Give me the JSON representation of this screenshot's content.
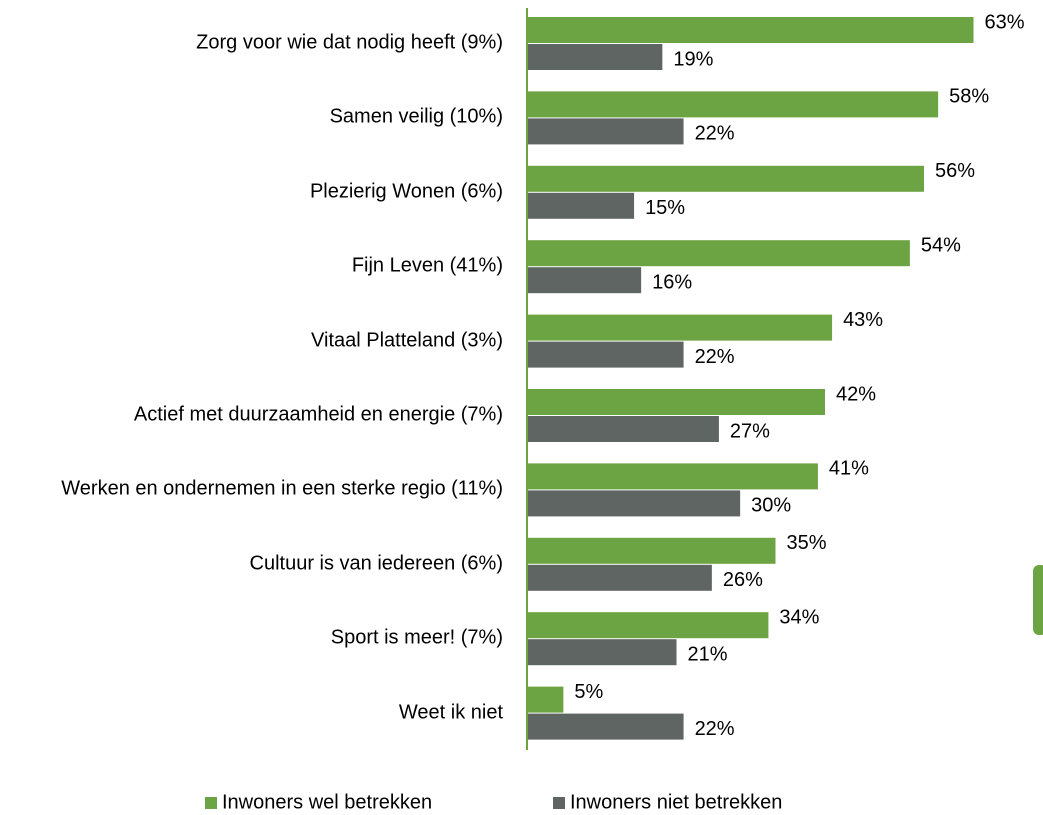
{
  "chart_data": {
    "type": "bar",
    "orientation": "horizontal",
    "categories": [
      "Zorg voor wie dat nodig heeft (9%)",
      "Samen veilig (10%)",
      "Plezierig Wonen (6%)",
      "Fijn Leven (41%)",
      "Vitaal Platteland (3%)",
      "Actief met duurzaamheid en energie (7%)",
      "Werken en ondernemen in een sterke regio (11%)",
      "Cultuur is van iedereen (6%)",
      "Sport is meer! (7%)",
      "Weet ik niet"
    ],
    "series": [
      {
        "name": "Inwoners wel betrekken",
        "color": "#6ca443",
        "values": [
          63,
          58,
          56,
          54,
          43,
          42,
          41,
          35,
          34,
          5
        ],
        "value_labels": [
          "63%",
          "58%",
          "56%",
          "54%",
          "43%",
          "42%",
          "41%",
          "35%",
          "34%",
          "5%"
        ]
      },
      {
        "name": "Inwoners niet betrekken",
        "color": "#5f6563",
        "values": [
          19,
          22,
          15,
          16,
          22,
          27,
          30,
          26,
          21,
          22
        ],
        "value_labels": [
          "19%",
          "22%",
          "15%",
          "16%",
          "22%",
          "27%",
          "30%",
          "26%",
          "21%",
          "22%"
        ]
      }
    ],
    "xlim": [
      0,
      70
    ],
    "legend": "bottom"
  }
}
